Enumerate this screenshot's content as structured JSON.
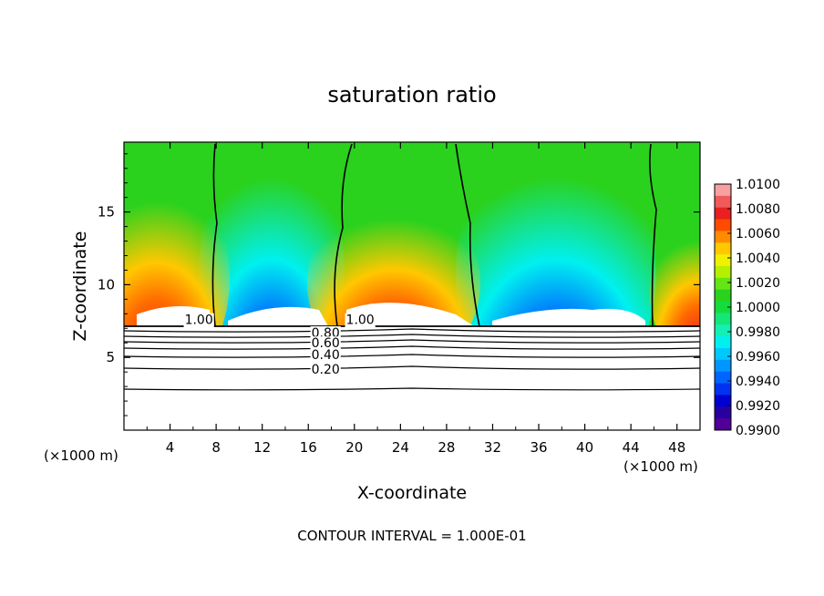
{
  "chart_data": {
    "type": "heatmap",
    "title": "saturation ratio",
    "xlabel": "X-coordinate",
    "ylabel": "Z-coordinate",
    "x_unit_left": "(×1000 m)",
    "x_unit_right": "(×1000 m)",
    "xlim": [
      0,
      50
    ],
    "ylim": [
      0,
      19.8
    ],
    "x_ticks": [
      4,
      8,
      12,
      16,
      20,
      24,
      28,
      32,
      36,
      40,
      44,
      48
    ],
    "y_ticks": [
      5,
      10,
      15
    ],
    "footer": "CONTOUR INTERVAL = 1.000E-01",
    "colorbar": {
      "labels": [
        "1.0100",
        "1.0080",
        "1.0060",
        "1.0040",
        "1.0020",
        "1.0000",
        "0.9980",
        "0.9960",
        "0.9940",
        "0.9920",
        "0.9900"
      ],
      "colors": [
        "#f7a0a0",
        "#f05a5a",
        "#e82020",
        "#ff4a00",
        "#ff8c00",
        "#ffc800",
        "#f0f000",
        "#b4f000",
        "#64e614",
        "#2ad21e",
        "#14dc3c",
        "#14e678",
        "#14f0b4",
        "#00f0f0",
        "#00c8ff",
        "#0096ff",
        "#0064ff",
        "#0032f0",
        "#0000d2",
        "#2800a0",
        "#500096"
      ]
    },
    "contour_labels": [
      {
        "text": "1.00",
        "x": 6.5,
        "y": 7.6
      },
      {
        "text": "1.00",
        "x": 20.5,
        "y": 7.6
      },
      {
        "text": "0.80",
        "x": 17.5,
        "y": 6.7
      },
      {
        "text": "0.60",
        "x": 17.5,
        "y": 6.0
      },
      {
        "text": "0.40",
        "x": 17.5,
        "y": 5.2
      },
      {
        "text": "0.20",
        "x": 17.5,
        "y": 4.2
      }
    ]
  }
}
